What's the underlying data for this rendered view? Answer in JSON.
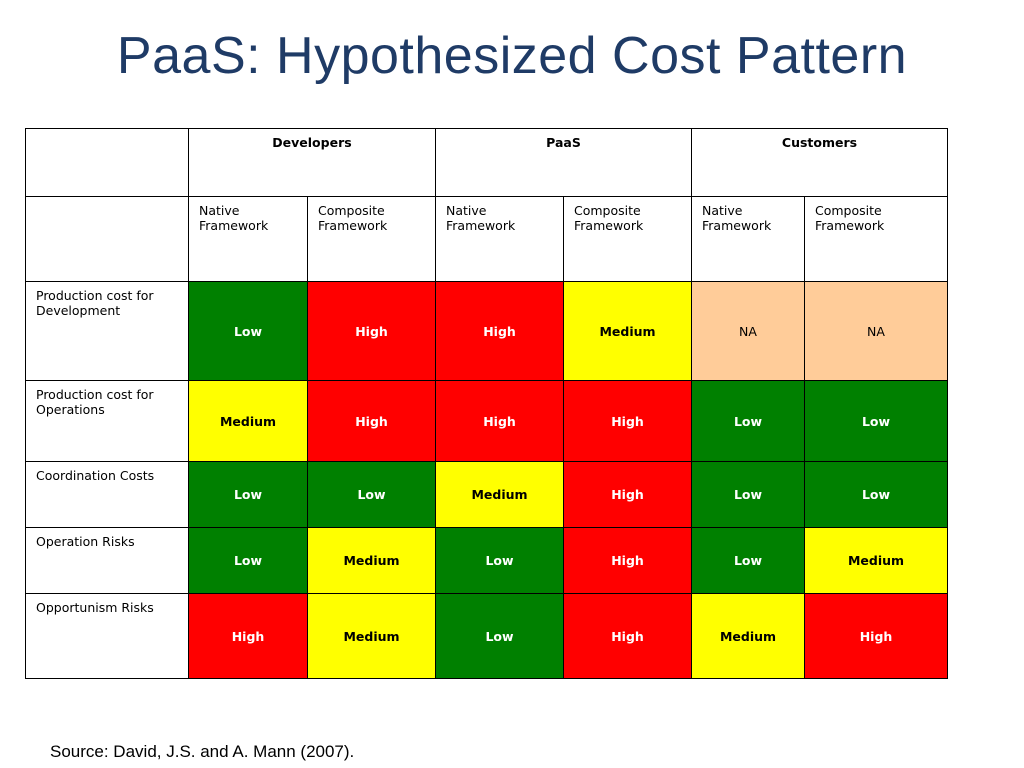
{
  "title": "PaaS:  Hypothesized Cost Pattern",
  "colors": {
    "title": "#1f3b66",
    "Low": "#008000",
    "High": "#ff0000",
    "Medium": "#ffff00",
    "NA": "#ffcc99"
  },
  "table": {
    "groups": [
      "Developers",
      "PaaS",
      "Customers"
    ],
    "subheaders": [
      "Native Framework",
      "Composite Framework",
      "Native Framework",
      "Composite Framework",
      "Native Framework",
      "Composite Framework"
    ],
    "rows": [
      {
        "label": "Production cost for Development",
        "values": [
          "Low",
          "High",
          "High",
          "Medium",
          "NA",
          "NA"
        ]
      },
      {
        "label": "Production cost for Operations",
        "values": [
          "Medium",
          "High",
          "High",
          "High",
          "Low",
          "Low"
        ]
      },
      {
        "label": "Coordination Costs",
        "values": [
          "Low",
          "Low",
          "Medium",
          "High",
          "Low",
          "Low"
        ]
      },
      {
        "label": "Operation Risks",
        "values": [
          "Low",
          "Medium",
          "Low",
          "High",
          "Low",
          "Medium"
        ]
      },
      {
        "label": "Opportunism Risks",
        "values": [
          "High",
          "Medium",
          "Low",
          "High",
          "Medium",
          "High"
        ]
      }
    ]
  },
  "source": "Source: David, J.S. and A. Mann (2007)."
}
